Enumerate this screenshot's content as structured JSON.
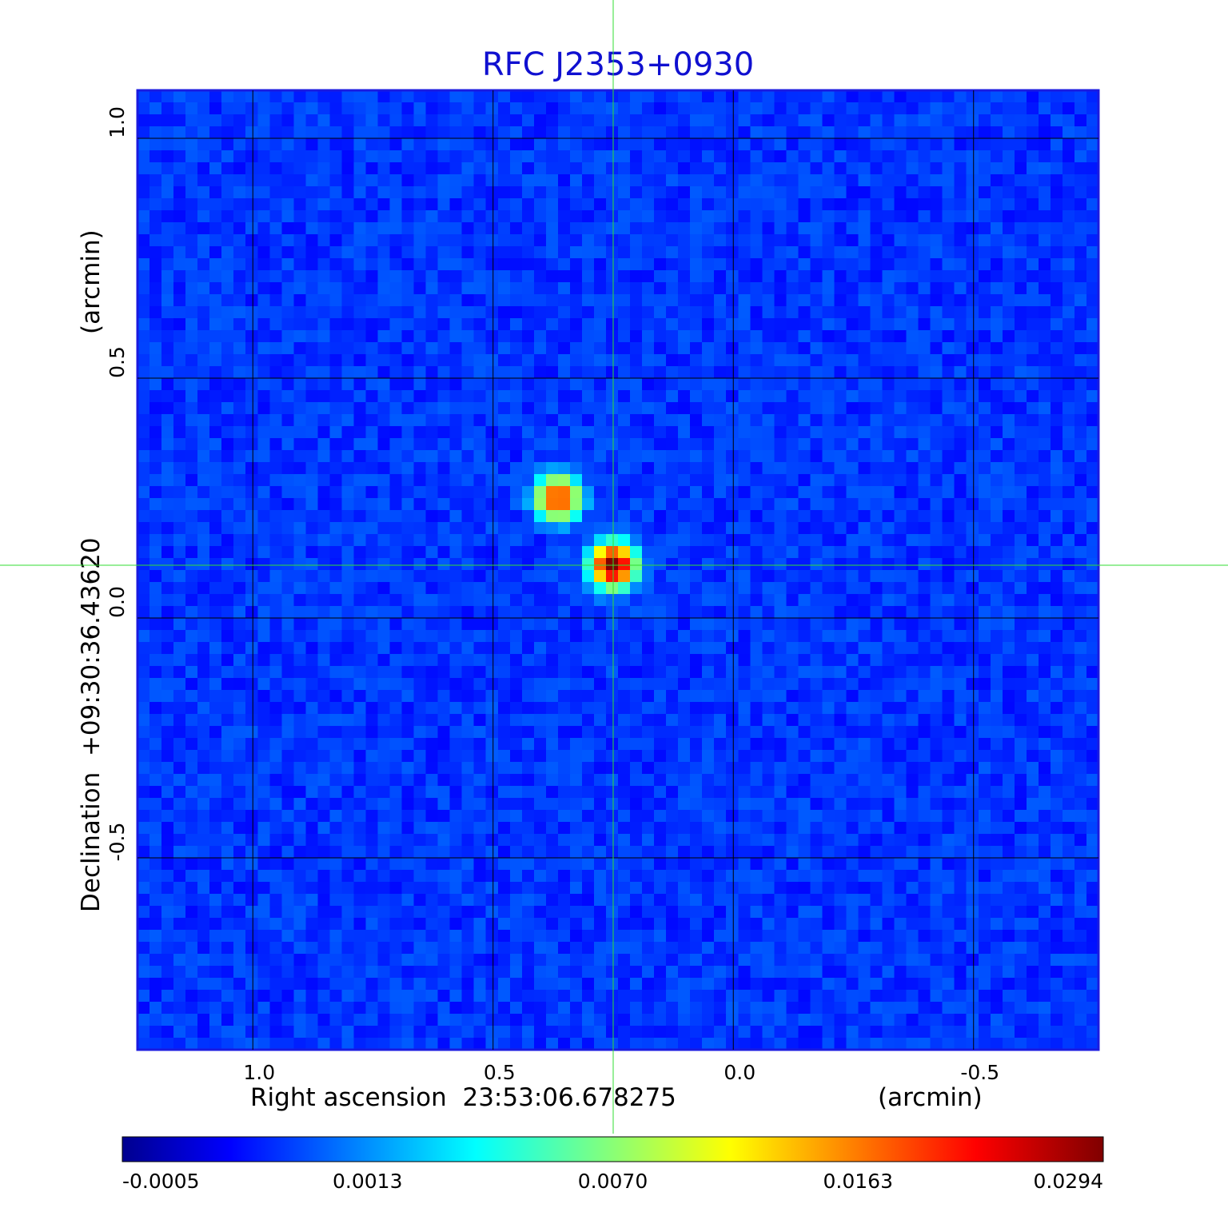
{
  "chart_data": {
    "type": "heatmap",
    "title": "RFC J2353+0930",
    "xlabel": "Right ascension  23:53:06.678275",
    "xlabel_unit": "(arcmin)",
    "ylabel": "Declination  +09:30:36.43620",
    "ylabel_unit": "(arcmin)",
    "x_range": [
      1.24,
      -0.76
    ],
    "y_range": [
      -0.9,
      1.1
    ],
    "x_ticks": [
      {
        "value": 1.0,
        "label": "1.0"
      },
      {
        "value": 0.5,
        "label": "0.5"
      },
      {
        "value": 0.0,
        "label": "0.0"
      },
      {
        "value": -0.5,
        "label": "-0.5"
      }
    ],
    "y_ticks": [
      {
        "value": 1.0,
        "label": "1.0"
      },
      {
        "value": 0.5,
        "label": "0.5"
      },
      {
        "value": 0.0,
        "label": "0.0"
      },
      {
        "value": -0.5,
        "label": "-0.5"
      }
    ],
    "grid": true,
    "crosshair": {
      "x": 0.25,
      "y": 0.11,
      "color": "#33dd33"
    },
    "sources": [
      {
        "x": 0.25,
        "y": 0.11,
        "peak": 0.0294
      },
      {
        "x": 0.365,
        "y": 0.25,
        "peak": 0.02
      }
    ],
    "background_level": 0.0003,
    "colorbar": {
      "position": "bottom",
      "tick_labels": [
        "-0.0005",
        "0.0013",
        "0.0070",
        "0.0163",
        "0.0294"
      ],
      "colormap": [
        "#00008f",
        "#0000ff",
        "#00ffff",
        "#ffff00",
        "#ff0000",
        "#800000"
      ]
    }
  }
}
